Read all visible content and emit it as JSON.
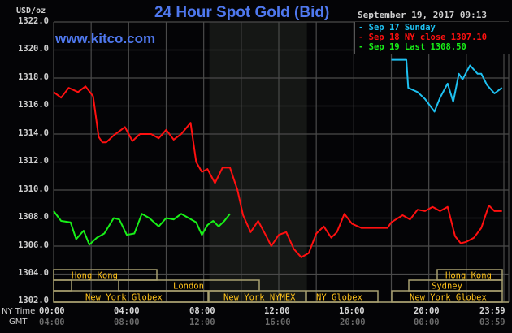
{
  "header": {
    "title": "24 Hour Spot Gold (Bid)",
    "site": "www.kitco.com",
    "unit": "USD/oz",
    "datetime": "September 19, 2017 09:13"
  },
  "legend": [
    {
      "label": "Sep 17 Sunday",
      "color": "#1ec0f0"
    },
    {
      "label": "Sep 18 NY close 1307.10",
      "color": "#ff1010"
    },
    {
      "label": "Sep 19 Last 1308.50",
      "color": "#18f018"
    }
  ],
  "y_ticks": [
    "1322.0",
    "1320.0",
    "1318.0",
    "1316.0",
    "1314.0",
    "1312.0",
    "1310.0",
    "1308.0",
    "1306.0",
    "1304.0",
    "1302.0"
  ],
  "x_axis": {
    "ny_label": "NY Time",
    "gmt_label": "GMT",
    "ny_ticks": [
      "00:00",
      "04:00",
      "08:00",
      "12:00",
      "16:00",
      "20:00",
      "23:59"
    ],
    "gmt_ticks": [
      "04:00",
      "08:00",
      "12:00",
      "16:00",
      "20:00",
      "00:00",
      "03:59"
    ]
  },
  "sessions": {
    "row1": [
      {
        "label": "Hong Kong"
      },
      {
        "label": "Hong Kong"
      }
    ],
    "row2": [
      {
        "label": "London"
      },
      {
        "label": "Sydney"
      }
    ],
    "row3": [
      {
        "label": "New York Globex"
      },
      {
        "label": "New York NYMEX"
      },
      {
        "label": "NY Globex"
      },
      {
        "label": "New York Globex"
      }
    ]
  },
  "chart_data": {
    "type": "line",
    "title": "24 Hour Spot Gold (Bid)",
    "xlabel": "NY Time / GMT",
    "ylabel": "USD/oz",
    "ylim": [
      1302.0,
      1322.0
    ],
    "xlim_hours": [
      0,
      24
    ],
    "grid": true,
    "legend_position": "top-right",
    "shaded_region": {
      "label": "New York NYMEX",
      "start_hour": 8.3,
      "end_hour": 13.5
    },
    "series": [
      {
        "name": "Sep 17 Sunday",
        "color": "#1ec0f0",
        "x_hours": [
          18.0,
          18.8,
          18.9,
          19.4,
          19.8,
          20.3,
          20.6,
          21.0,
          21.3,
          21.6,
          21.8,
          22.2,
          22.6,
          22.8,
          23.1,
          23.5,
          23.9
        ],
        "values": [
          1319.3,
          1319.3,
          1317.3,
          1317.0,
          1316.5,
          1315.6,
          1316.6,
          1317.6,
          1316.3,
          1318.3,
          1317.9,
          1318.9,
          1318.3,
          1318.3,
          1317.5,
          1316.9,
          1317.3
        ]
      },
      {
        "name": "Sep 18 NY close 1307.10",
        "color": "#ff1010",
        "x_hours": [
          0.0,
          0.4,
          0.8,
          1.3,
          1.7,
          2.1,
          2.4,
          2.6,
          2.8,
          3.2,
          3.8,
          4.2,
          4.6,
          5.2,
          5.6,
          6.0,
          6.4,
          6.8,
          7.3,
          7.6,
          7.9,
          8.2,
          8.6,
          9.0,
          9.4,
          9.8,
          10.1,
          10.5,
          10.9,
          11.3,
          11.6,
          12.0,
          12.4,
          12.8,
          13.2,
          13.6,
          14.0,
          14.4,
          14.8,
          15.1,
          15.5,
          15.9,
          16.4,
          16.8,
          17.3,
          17.8,
          18.0,
          18.6,
          19.0,
          19.4,
          19.8,
          20.2,
          20.6,
          21.0,
          21.4,
          21.7,
          22.0,
          22.4,
          22.8,
          23.2,
          23.5,
          23.9
        ],
        "values": [
          1317.0,
          1316.6,
          1317.3,
          1317.0,
          1317.4,
          1316.7,
          1313.8,
          1313.4,
          1313.4,
          1313.9,
          1314.5,
          1313.5,
          1314.0,
          1314.0,
          1313.7,
          1314.3,
          1313.6,
          1314.0,
          1314.8,
          1312.0,
          1311.3,
          1311.5,
          1310.5,
          1311.6,
          1311.6,
          1310.0,
          1308.2,
          1307.0,
          1307.8,
          1306.8,
          1306.0,
          1306.8,
          1307.0,
          1305.8,
          1305.2,
          1305.5,
          1306.9,
          1307.4,
          1306.6,
          1307.0,
          1308.3,
          1307.6,
          1307.3,
          1307.3,
          1307.3,
          1307.3,
          1307.7,
          1308.2,
          1307.9,
          1308.6,
          1308.5,
          1308.8,
          1308.5,
          1308.8,
          1306.7,
          1306.2,
          1306.3,
          1306.6,
          1307.3,
          1308.9,
          1308.5,
          1308.5
        ]
      },
      {
        "name": "Sep 19 Last 1308.50",
        "color": "#18f018",
        "x_hours": [
          0.0,
          0.4,
          0.9,
          1.2,
          1.6,
          1.9,
          2.3,
          2.7,
          3.2,
          3.5,
          3.9,
          4.3,
          4.7,
          5.1,
          5.6,
          6.0,
          6.4,
          6.8,
          7.2,
          7.6,
          7.9,
          8.2,
          8.5,
          8.8,
          9.1,
          9.4
        ],
        "values": [
          1308.5,
          1307.8,
          1307.7,
          1306.5,
          1307.1,
          1306.1,
          1306.6,
          1306.9,
          1308.0,
          1307.9,
          1306.8,
          1306.9,
          1308.3,
          1308.0,
          1307.4,
          1308.0,
          1307.9,
          1308.3,
          1308.0,
          1307.7,
          1306.8,
          1307.5,
          1307.8,
          1307.4,
          1307.8,
          1308.3
        ]
      }
    ]
  }
}
